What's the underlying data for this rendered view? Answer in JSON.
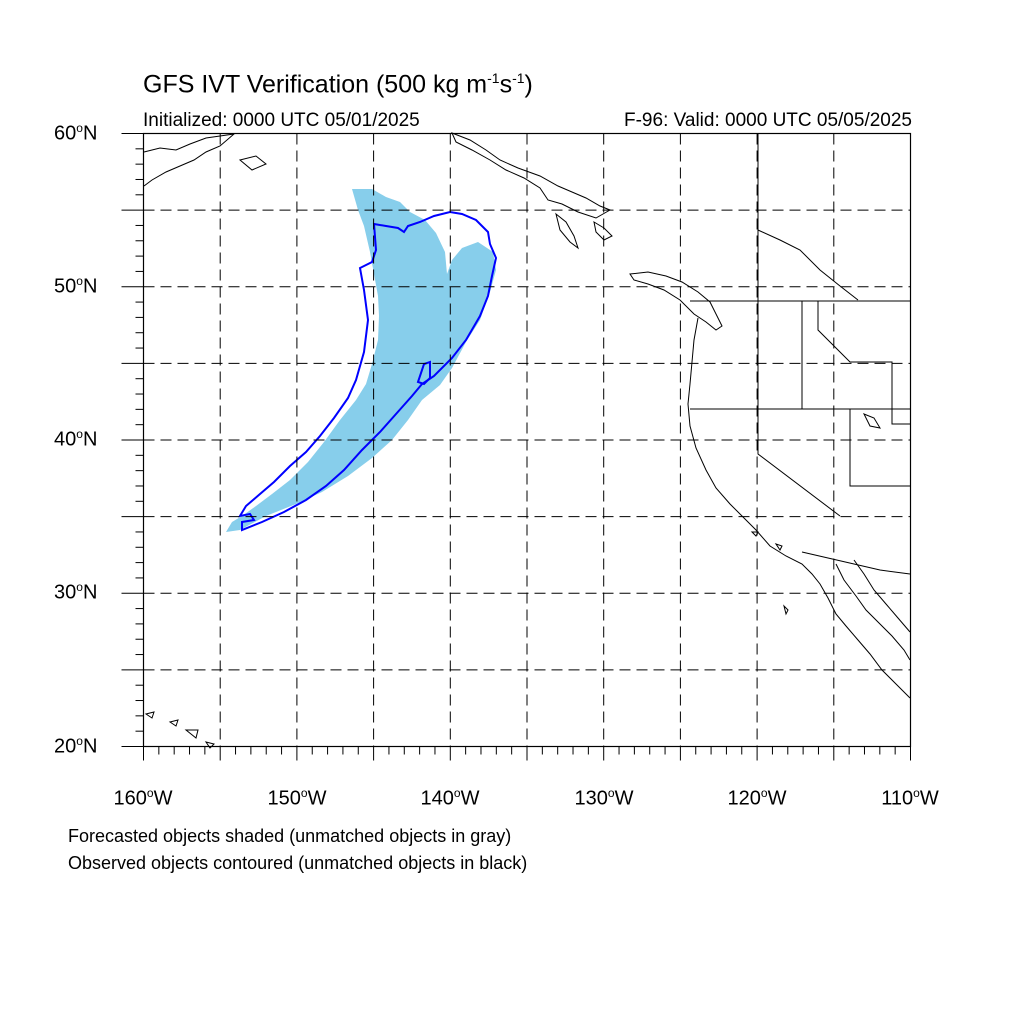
{
  "title": {
    "prefix": "GFS IVT Verification (500 kg m",
    "exp1": "-1",
    "mid": "s",
    "exp2": "-1",
    "suffix": ")"
  },
  "initialized": "Initialized: 0000 UTC 05/01/2025",
  "valid": "F-96: Valid: 0000 UTC 05/05/2025",
  "lat_labels": [
    {
      "deg": "60",
      "hem": "N"
    },
    {
      "deg": "50",
      "hem": "N"
    },
    {
      "deg": "40",
      "hem": "N"
    },
    {
      "deg": "30",
      "hem": "N"
    },
    {
      "deg": "20",
      "hem": "N"
    }
  ],
  "lon_labels": [
    {
      "deg": "160",
      "hem": "W"
    },
    {
      "deg": "150",
      "hem": "W"
    },
    {
      "deg": "140",
      "hem": "W"
    },
    {
      "deg": "130",
      "hem": "W"
    },
    {
      "deg": "120",
      "hem": "W"
    },
    {
      "deg": "110",
      "hem": "W"
    }
  ],
  "map_extent": {
    "lon_min": -160,
    "lon_max": -110,
    "lat_min": 20,
    "lat_max": 60
  },
  "colors": {
    "forecast_fill": "#87ceeb",
    "observed_contour": "#0000ff",
    "coastline": "#000000",
    "gridline": "#000000"
  },
  "notes": {
    "forecast": "Forecasted objects shaded (unmatched objects in gray)",
    "observed": "Observed objects contoured (unmatched objects in black)"
  }
}
